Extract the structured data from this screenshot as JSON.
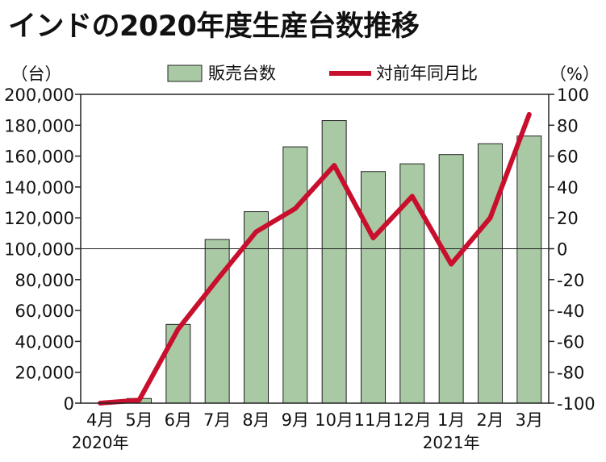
{
  "title": "インドの2020年度生産台数推移",
  "chart_data": {
    "type": "bar",
    "categories": [
      "4月",
      "5月",
      "6月",
      "7月",
      "8月",
      "9月",
      "10月",
      "11月",
      "12月",
      "1月",
      "2月",
      "3月"
    ],
    "year_labels": [
      {
        "text": "2020年",
        "category_index": 0
      },
      {
        "text": "2021年",
        "category_index": 9
      }
    ],
    "series": [
      {
        "name": "販売台数",
        "type": "bar",
        "axis": "left",
        "color": "#a9c9a4",
        "values": [
          0,
          3000,
          51000,
          106000,
          124000,
          166000,
          183000,
          150000,
          155000,
          161000,
          168000,
          173000
        ]
      },
      {
        "name": "対前年同月比",
        "type": "line",
        "axis": "right",
        "color": "#c8102e",
        "values": [
          -100,
          -98,
          -52,
          -20,
          11,
          26,
          54,
          7,
          34,
          -10,
          20,
          87
        ]
      }
    ],
    "left_axis": {
      "unit": "（台）",
      "min": 0,
      "max": 200000,
      "ticks": [
        "0",
        "20,000",
        "40,000",
        "60,000",
        "80,000",
        "100,000",
        "120,000",
        "140,000",
        "160,000",
        "180,000",
        "200,000"
      ]
    },
    "right_axis": {
      "unit": "（%）",
      "min": -100,
      "max": 100,
      "ticks": [
        "-100",
        "-80",
        "-60",
        "-40",
        "-20",
        "0",
        "20",
        "40",
        "60",
        "80",
        "100"
      ]
    },
    "reference_line": 0,
    "legend_position": "top-center",
    "grid": false
  }
}
